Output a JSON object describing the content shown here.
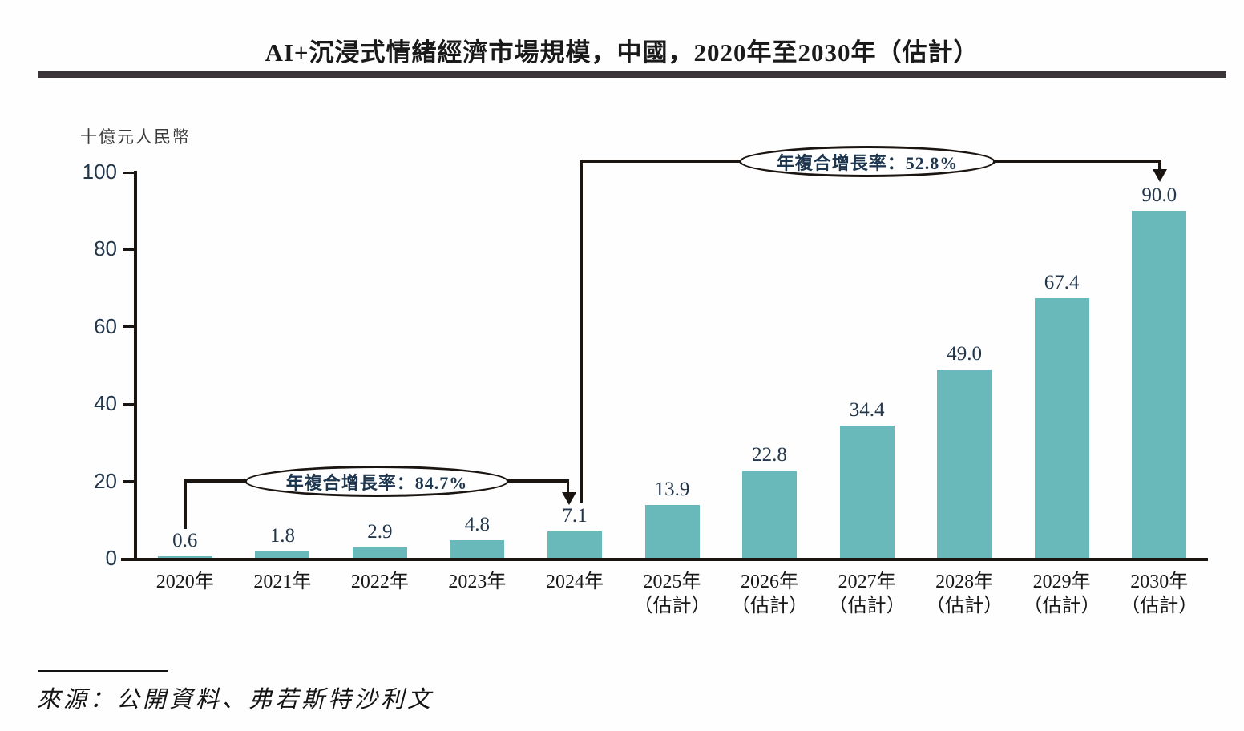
{
  "page": {
    "source": "來源：公開資料、弗若斯特沙利文"
  },
  "chart_data": {
    "type": "bar",
    "title": "AI+沉浸式情緒經濟市場規模，中國，2020年至2030年（估計）",
    "ylabel": "十億元人民幣",
    "xlabel": "",
    "categories": [
      "2020年",
      "2021年",
      "2022年",
      "2023年",
      "2024年",
      "2025年",
      "2026年",
      "2027年",
      "2028年",
      "2029年",
      "2030年"
    ],
    "category_notes": [
      "",
      "",
      "",
      "",
      "",
      "（估計）",
      "（估計）",
      "（估計）",
      "（估計）",
      "（估計）",
      "（估計）"
    ],
    "values": [
      0.6,
      1.8,
      2.9,
      4.8,
      7.1,
      13.9,
      22.8,
      34.4,
      49.0,
      67.4,
      90.0
    ],
    "ylim": [
      0,
      100
    ],
    "yticks": [
      0,
      20,
      40,
      60,
      80,
      100
    ],
    "grid": false,
    "legend": "none",
    "bar_color": "#69b8ba",
    "annotations": [
      {
        "text": "年複合增長率：84.7%",
        "from": "2020年",
        "to": "2024年"
      },
      {
        "text": "年複合增長率：52.8%",
        "from": "2024年",
        "to": "2030年"
      }
    ]
  }
}
